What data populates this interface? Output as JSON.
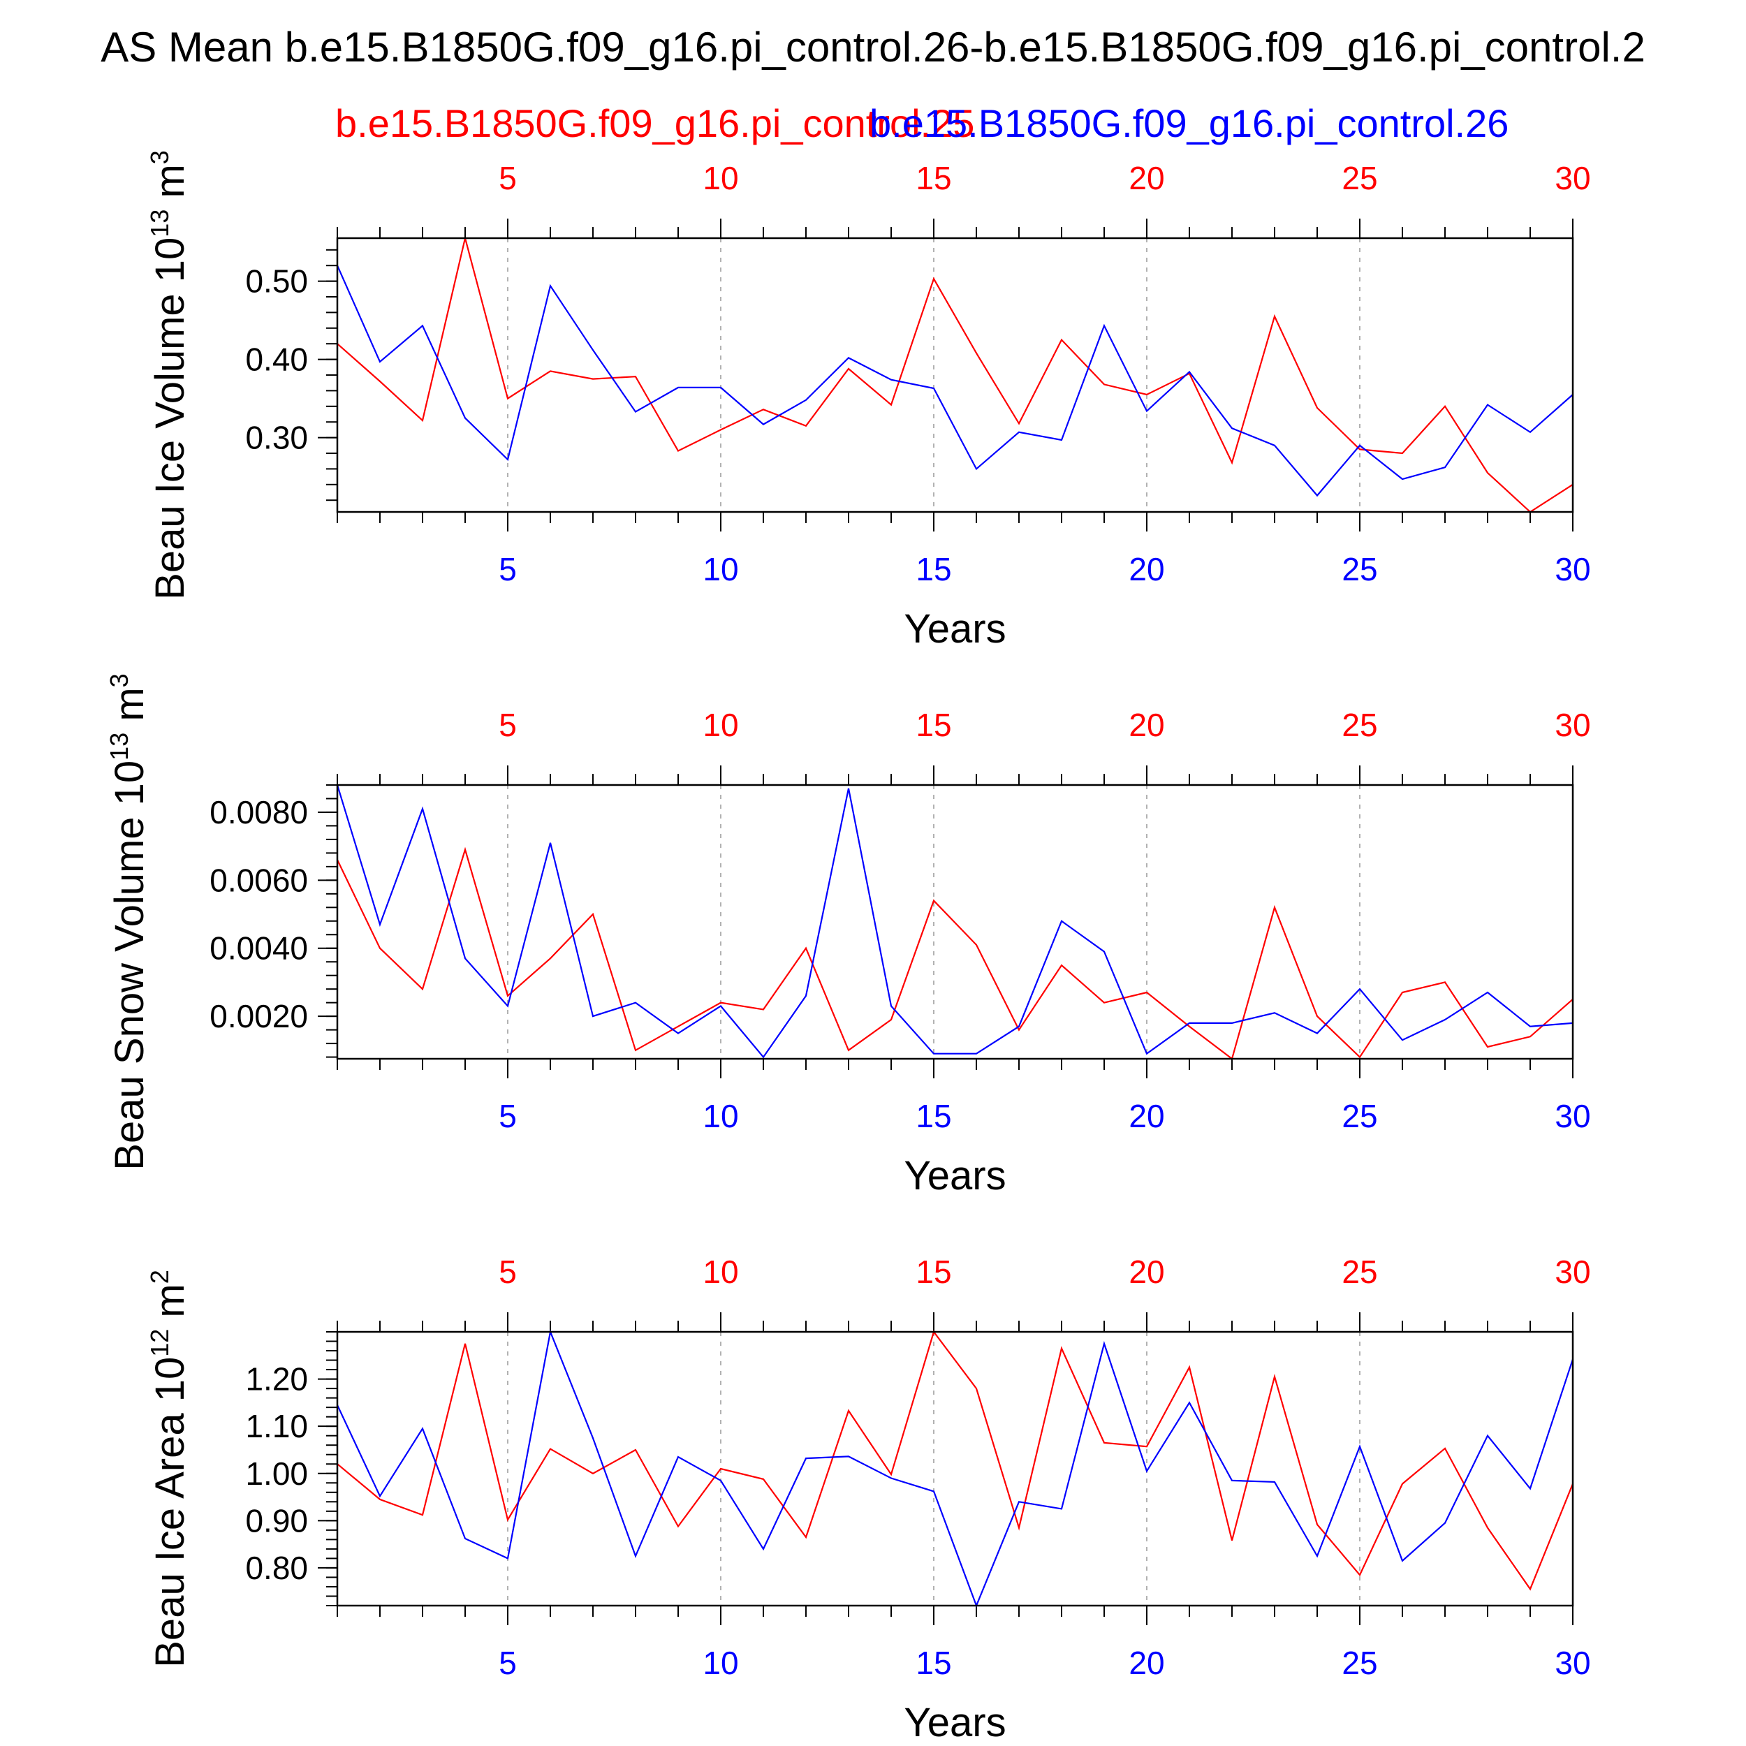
{
  "figure": {
    "title": "AS Mean b.e15.B1850G.f09_g16.pi_control.26-b.e15.B1850G.f09_g16.pi_control.2",
    "legend": [
      {
        "label": "b.e15.B1850G.f09_g16.pi_control.25",
        "color": "#ff0000"
      },
      {
        "label": "b.e15.B1850G.f09_g16.pi_control.26",
        "color": "#0000ff"
      }
    ]
  },
  "colors": {
    "run25": "#ff0000",
    "run26": "#0000ff",
    "axis": "#000000",
    "grid": "#999999"
  },
  "chart_data": [
    {
      "type": "line",
      "ylabel": "Beau Ice Volume 10",
      "ylabel_exp": "13",
      "ylabel_unit": "m",
      "ylabel_unit_exp": "3",
      "xlabel": "Years",
      "xlim": [
        1,
        30
      ],
      "ylim": [
        0.205,
        0.555
      ],
      "ytick_values": [
        0.3,
        0.4,
        0.5
      ],
      "ytick_labels": [
        "0.30",
        "0.40",
        "0.50"
      ],
      "xtick_values": [
        5,
        10,
        15,
        20,
        25,
        30
      ],
      "xtick_labels": [
        "5",
        "10",
        "15",
        "20",
        "25",
        "30"
      ],
      "grid": "dashed vertical at x ticks",
      "x": [
        1,
        2,
        3,
        4,
        5,
        6,
        7,
        8,
        9,
        10,
        11,
        12,
        13,
        14,
        15,
        16,
        17,
        18,
        19,
        20,
        21,
        22,
        23,
        24,
        25,
        26,
        27,
        28,
        29,
        30
      ],
      "series": [
        {
          "name": "b.e15.B1850G.f09_g16.pi_control.25",
          "color": "#ff0000",
          "values": [
            0.42,
            0.372,
            0.322,
            0.555,
            0.35,
            0.385,
            0.375,
            0.378,
            0.283,
            0.31,
            0.336,
            0.315,
            0.388,
            0.342,
            0.503,
            0.408,
            0.318,
            0.425,
            0.368,
            0.355,
            0.382,
            0.268,
            0.455,
            0.338,
            0.285,
            0.28,
            0.34,
            0.255,
            0.205,
            0.24
          ]
        },
        {
          "name": "b.e15.B1850G.f09_g16.pi_control.26",
          "color": "#0000ff",
          "values": [
            0.52,
            0.397,
            0.443,
            0.325,
            0.272,
            0.494,
            0.412,
            0.333,
            0.364,
            0.364,
            0.317,
            0.348,
            0.402,
            0.374,
            0.363,
            0.26,
            0.307,
            0.297,
            0.443,
            0.334,
            0.384,
            0.312,
            0.29,
            0.226,
            0.29,
            0.247,
            0.262,
            0.342,
            0.307,
            0.355
          ]
        }
      ]
    },
    {
      "type": "line",
      "ylabel": "Beau Snow Volume 10",
      "ylabel_exp": "13",
      "ylabel_unit": "m",
      "ylabel_unit_exp": "3",
      "xlabel": "Years",
      "xlim": [
        1,
        30
      ],
      "ylim": [
        0.00075,
        0.0088
      ],
      "ytick_values": [
        0.002,
        0.004,
        0.006,
        0.008
      ],
      "ytick_labels": [
        "0.0020",
        "0.0040",
        "0.0060",
        "0.0080"
      ],
      "xtick_values": [
        5,
        10,
        15,
        20,
        25,
        30
      ],
      "xtick_labels": [
        "5",
        "10",
        "15",
        "20",
        "25",
        "30"
      ],
      "grid": "dashed vertical at x ticks",
      "x": [
        1,
        2,
        3,
        4,
        5,
        6,
        7,
        8,
        9,
        10,
        11,
        12,
        13,
        14,
        15,
        16,
        17,
        18,
        19,
        20,
        21,
        22,
        23,
        24,
        25,
        26,
        27,
        28,
        29,
        30
      ],
      "series": [
        {
          "name": "b.e15.B1850G.f09_g16.pi_control.25",
          "color": "#ff0000",
          "values": [
            0.0066,
            0.004,
            0.0028,
            0.0069,
            0.0026,
            0.0037,
            0.005,
            0.001,
            0.0017,
            0.0024,
            0.0022,
            0.004,
            0.001,
            0.0019,
            0.0054,
            0.0041,
            0.0016,
            0.0035,
            0.0024,
            0.0027,
            0.0017,
            0.00075,
            0.0052,
            0.002,
            0.0008,
            0.0027,
            0.003,
            0.0011,
            0.0014,
            0.0025
          ]
        },
        {
          "name": "b.e15.B1850G.f09_g16.pi_control.26",
          "color": "#0000ff",
          "values": [
            0.0088,
            0.0047,
            0.0081,
            0.0037,
            0.0023,
            0.0071,
            0.002,
            0.0024,
            0.0015,
            0.0023,
            0.0008,
            0.0026,
            0.0087,
            0.0023,
            0.0009,
            0.0009,
            0.0017,
            0.0048,
            0.0039,
            0.0009,
            0.0018,
            0.0018,
            0.0021,
            0.0015,
            0.0028,
            0.0013,
            0.0019,
            0.0027,
            0.0017,
            0.0018
          ]
        }
      ]
    },
    {
      "type": "line",
      "ylabel": "Beau Ice Area 10",
      "ylabel_exp": "12",
      "ylabel_unit": "m",
      "ylabel_unit_exp": "2",
      "xlabel": "Years",
      "xlim": [
        1,
        30
      ],
      "ylim": [
        0.72,
        1.3
      ],
      "ytick_values": [
        0.8,
        0.9,
        1.0,
        1.1,
        1.2
      ],
      "ytick_labels": [
        "0.80",
        "0.90",
        "1.00",
        "1.10",
        "1.20"
      ],
      "xtick_values": [
        5,
        10,
        15,
        20,
        25,
        30
      ],
      "xtick_labels": [
        "5",
        "10",
        "15",
        "20",
        "25",
        "30"
      ],
      "grid": "dashed vertical at x ticks",
      "x": [
        1,
        2,
        3,
        4,
        5,
        6,
        7,
        8,
        9,
        10,
        11,
        12,
        13,
        14,
        15,
        16,
        17,
        18,
        19,
        20,
        21,
        22,
        23,
        24,
        25,
        26,
        27,
        28,
        29,
        30
      ],
      "series": [
        {
          "name": "b.e15.B1850G.f09_g16.pi_control.25",
          "color": "#ff0000",
          "values": [
            1.02,
            0.945,
            0.912,
            1.275,
            0.902,
            1.052,
            1.0,
            1.05,
            0.888,
            1.01,
            0.988,
            0.865,
            1.133,
            0.998,
            1.3,
            1.18,
            0.885,
            1.265,
            1.065,
            1.057,
            1.225,
            0.858,
            1.205,
            0.892,
            0.785,
            0.978,
            1.053,
            0.885,
            0.755,
            0.978
          ]
        },
        {
          "name": "b.e15.B1850G.f09_g16.pi_control.26",
          "color": "#0000ff",
          "values": [
            1.145,
            0.952,
            1.095,
            0.862,
            0.82,
            1.3,
            1.075,
            0.825,
            1.035,
            0.985,
            0.84,
            1.032,
            1.036,
            0.99,
            0.962,
            0.72,
            0.94,
            0.925,
            1.275,
            1.005,
            1.15,
            0.985,
            0.982,
            0.825,
            1.057,
            0.815,
            0.895,
            1.08,
            0.968,
            1.242
          ]
        }
      ]
    }
  ]
}
